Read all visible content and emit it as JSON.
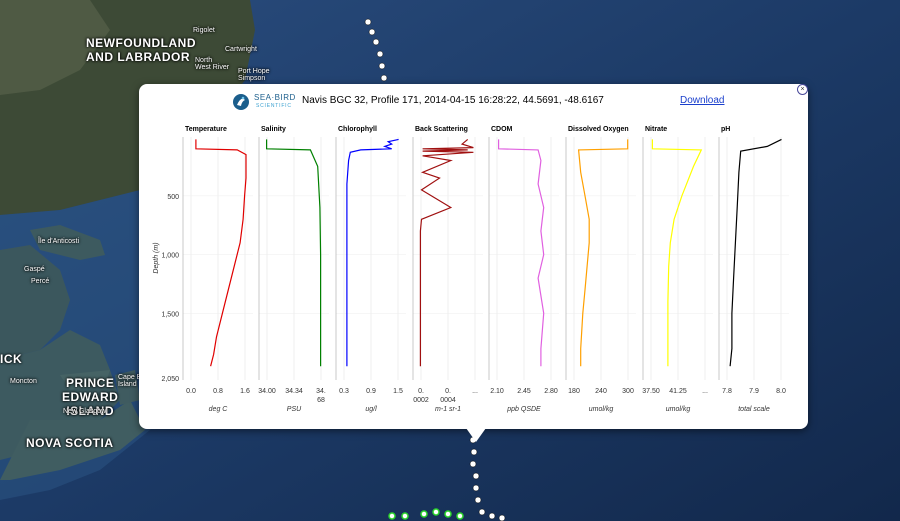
{
  "map": {
    "labels": [
      {
        "text": "NEWFOUNDLAND\nAND LABRADOR",
        "size": "big"
      },
      {
        "text": "PRINCE\nEDWARD\nISLAND",
        "size": "big"
      },
      {
        "text": "NOVA SCOTIA",
        "size": "big"
      },
      {
        "text": "Rigolet",
        "size": "small"
      },
      {
        "text": "Cartwright",
        "size": "small"
      },
      {
        "text": "North\nWest River",
        "size": "small"
      },
      {
        "text": "Port Hope\nSimpson",
        "size": "small"
      },
      {
        "text": "Île d'Anticosti",
        "size": "small"
      },
      {
        "text": "Gaspé",
        "size": "small"
      },
      {
        "text": "Percé",
        "size": "small"
      },
      {
        "text": "Moncton",
        "size": "small"
      },
      {
        "text": "Cape Breton\nIsland",
        "size": "small"
      },
      {
        "text": "New Glasgow",
        "size": "small"
      },
      {
        "text": "ICK",
        "size": "big"
      }
    ]
  },
  "popup": {
    "logo_line1": "SEA·BIRD",
    "logo_line2": "SCIENTIFIC",
    "title": "Navis BGC 32, Profile 171, 2014-04-15 16:28:22, 44.5691, -48.6167",
    "download_label": "Download",
    "close_label": "×"
  },
  "chart_data": [
    {
      "type": "line",
      "title": "Temperature",
      "xlabel": "deg C",
      "ylabel": "Depth (m)",
      "xticks": [
        "0.0",
        "0.8",
        "1.6"
      ],
      "xlim": [
        0,
        2.1
      ],
      "yticks": [
        "500",
        "1,000",
        "1,500",
        "2,050"
      ],
      "ylim": [
        0,
        2050
      ],
      "color": "#e00000",
      "x": [
        0.3,
        0.3,
        1.7,
        2.0,
        2.0,
        1.95,
        1.9,
        1.8,
        1.6,
        1.4,
        1.2,
        1.0,
        0.9,
        0.8
      ],
      "y": [
        20,
        100,
        110,
        150,
        350,
        500,
        700,
        900,
        1100,
        1300,
        1500,
        1700,
        1850,
        1950
      ]
    },
    {
      "type": "line",
      "title": "Salinity",
      "xlabel": "PSU",
      "xticks": [
        "34.00",
        "34.34",
        "34.\n68"
      ],
      "xlim": [
        33.9,
        34.75
      ],
      "color": "#008000",
      "x": [
        33.95,
        33.95,
        34.55,
        34.65,
        34.68,
        34.69,
        34.69,
        34.69
      ],
      "y": [
        20,
        100,
        110,
        250,
        600,
        1000,
        1500,
        1950
      ]
    },
    {
      "type": "line",
      "title": "Chlorophyll",
      "xlabel": "ug/l",
      "xticks": [
        "0.3",
        "0.9",
        "1.5"
      ],
      "xlim": [
        0,
        1.8
      ],
      "color": "#0000ff",
      "x": [
        1.7,
        1.4,
        1.5,
        1.3,
        1.5,
        0.6,
        0.3,
        0.25,
        0.2,
        0.2,
        0.2,
        0.2,
        0.2,
        0.2
      ],
      "y": [
        20,
        40,
        60,
        80,
        100,
        110,
        130,
        200,
        400,
        800,
        1200,
        1500,
        1800,
        1950
      ]
    },
    {
      "type": "line",
      "title": "Back Scattering",
      "xlabel": "m-1 sr-1",
      "xticks": [
        "0.\n0002",
        "0.\n0004",
        "..."
      ],
      "xlim": [
        0,
        0.00055
      ],
      "color": "#a01010",
      "x": [
        0.00045,
        0.0004,
        0.0005,
        5e-05,
        0.00045,
        5e-05,
        0.0005,
        5e-05,
        0.0003,
        5e-05,
        0.0002,
        4e-05,
        0.0003,
        4e-05,
        3e-05,
        3e-05,
        3e-05,
        3e-05,
        3e-05,
        3e-05
      ],
      "y": [
        20,
        60,
        90,
        100,
        110,
        120,
        130,
        160,
        200,
        300,
        350,
        450,
        600,
        700,
        800,
        1000,
        1200,
        1500,
        1800,
        1950
      ]
    },
    {
      "type": "line",
      "title": "CDOM",
      "xlabel": "ppb QSDE",
      "xticks": [
        "2.10",
        "2.45",
        "2.80"
      ],
      "xlim": [
        2.0,
        3.1
      ],
      "color": "#e060e0",
      "x": [
        2.1,
        2.1,
        2.8,
        2.85,
        2.8,
        2.9,
        2.85,
        2.9,
        2.8,
        2.9,
        2.85,
        2.85
      ],
      "y": [
        20,
        100,
        110,
        200,
        400,
        600,
        800,
        1000,
        1200,
        1500,
        1800,
        1950
      ]
    },
    {
      "type": "line",
      "title": "Dissolved Oxygen",
      "xlabel": "umol/kg",
      "xticks": [
        "180",
        "240",
        "300"
      ],
      "xlim": [
        165,
        310
      ],
      "color": "#ffa000",
      "x": [
        300,
        300,
        185,
        190,
        200,
        210,
        210,
        205,
        200,
        195,
        190,
        190
      ],
      "y": [
        20,
        100,
        110,
        300,
        500,
        700,
        900,
        1100,
        1300,
        1500,
        1800,
        1950
      ]
    },
    {
      "type": "line",
      "title": "Nitrate",
      "xlabel": "umol/kg",
      "xticks": [
        "37.50",
        "41.25",
        "..."
      ],
      "xlim": [
        36.5,
        44.5
      ],
      "color": "#ffff00",
      "x": [
        37.2,
        37.2,
        43.5,
        42.5,
        41.0,
        40.0,
        39.5,
        39.3,
        39.2,
        39.2,
        39.2
      ],
      "y": [
        20,
        100,
        110,
        250,
        500,
        700,
        900,
        1100,
        1400,
        1700,
        1950
      ]
    },
    {
      "type": "line",
      "title": "pH",
      "xlabel": "total scale",
      "xticks": [
        "7.8",
        "7.9",
        "8.0"
      ],
      "xlim": [
        7.75,
        8.1
      ],
      "color": "#000000",
      "x": [
        8.08,
        8.0,
        7.85,
        7.84,
        7.83,
        7.82,
        7.81,
        7.8,
        7.8,
        7.79
      ],
      "y": [
        20,
        80,
        120,
        300,
        600,
        900,
        1200,
        1500,
        1800,
        1950
      ]
    }
  ]
}
